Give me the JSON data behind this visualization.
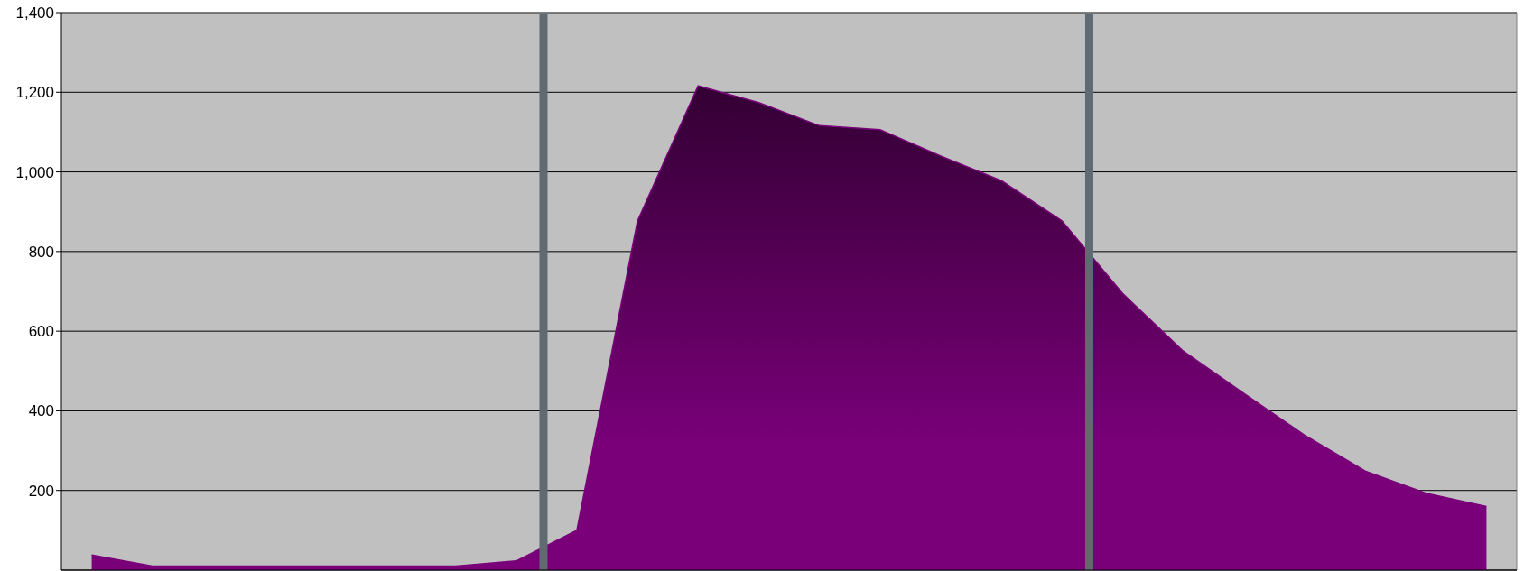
{
  "chart_data": {
    "type": "area",
    "categories": [
      null,
      null,
      null,
      null,
      null,
      null,
      null,
      null,
      null,
      null,
      null,
      null,
      null,
      null,
      null,
      null,
      null,
      null,
      null,
      null,
      null,
      null,
      null,
      null
    ],
    "values": [
      38,
      10,
      10,
      10,
      10,
      10,
      10,
      23,
      100,
      877,
      1216,
      1174,
      1116,
      1106,
      1040,
      978,
      877,
      695,
      550,
      444,
      339,
      249,
      193,
      160
    ],
    "color": "#7a007a",
    "ylim": [
      0,
      1400
    ],
    "yticks": [
      200,
      400,
      600,
      800,
      {
        "value": 1000,
        "label": "1,000"
      },
      {
        "value": 1200,
        "label": "1,200"
      },
      {
        "value": 1400,
        "label": "1,400"
      }
    ],
    "grid": "y",
    "tick_labels": "y"
  }
}
